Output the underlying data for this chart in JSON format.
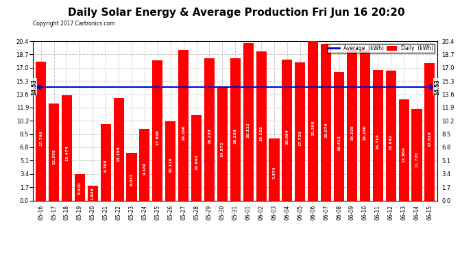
{
  "title": "Daily Solar Energy & Average Production Fri Jun 16 20:20",
  "copyright": "Copyright 2017 Cartronics.com",
  "categories": [
    "05-16",
    "05-17",
    "05-18",
    "05-19",
    "05-20",
    "05-21",
    "05-22",
    "05-23",
    "05-24",
    "05-25",
    "05-26",
    "05-27",
    "05-28",
    "05-29",
    "05-30",
    "05-31",
    "06-01",
    "06-02",
    "06-03",
    "06-04",
    "06-05",
    "06-06",
    "06-07",
    "06-08",
    "06-09",
    "06-10",
    "06-11",
    "06-12",
    "06-13",
    "06-14",
    "06-15"
  ],
  "values": [
    17.76,
    12.378,
    13.474,
    3.42,
    1.848,
    9.798,
    13.158,
    6.072,
    9.16,
    17.948,
    10.116,
    19.296,
    10.94,
    18.238,
    14.572,
    18.238,
    20.112,
    19.122,
    7.974,
    18.064,
    17.72,
    20.588,
    20.076,
    16.412,
    19.228,
    19.26,
    16.714,
    16.642,
    12.964,
    11.72,
    17.618
  ],
  "average": 14.53,
  "bar_color": "#ff0000",
  "average_line_color": "#0000cd",
  "background_color": "#ffffff",
  "plot_bg_color": "#ffffff",
  "grid_color": "#c8c8c8",
  "title_fontsize": 11,
  "yticks": [
    0.0,
    1.7,
    3.4,
    5.1,
    6.8,
    8.5,
    10.2,
    11.9,
    13.6,
    15.3,
    17.0,
    18.7,
    20.4
  ],
  "legend_avg_color": "#0000cd",
  "legend_daily_color": "#ff0000",
  "legend_avg_text": "Average  (kWh)",
  "legend_daily_text": "Daily  (kWh)"
}
